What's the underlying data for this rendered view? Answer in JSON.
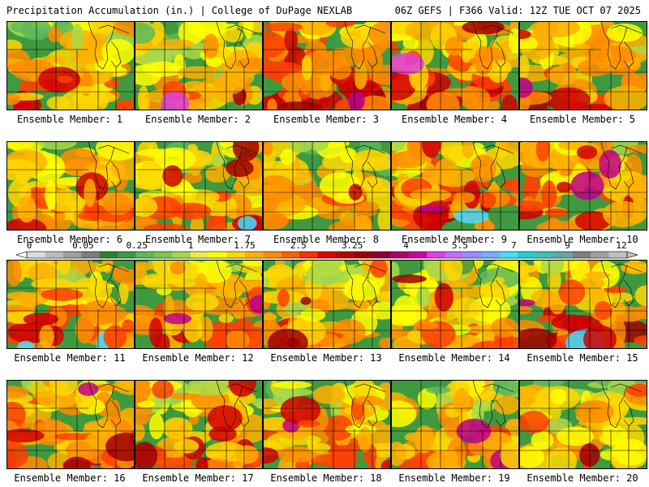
{
  "header": {
    "left": "Precipitation Accumulation (in.) | College of DuPage NEXLAB",
    "right": "06Z GEFS | F366 Valid: 12Z TUE OCT 07 2025"
  },
  "colorbar": {
    "tick_labels": [
      "0",
      "0.05",
      "0.25",
      "1",
      "1.75",
      "2.5",
      "3.25",
      "4",
      "5.5",
      "7",
      "9",
      "12"
    ],
    "colors": [
      "#dcdcdc",
      "#bdbdbd",
      "#9e9e9e",
      "#7d7d7d",
      "#2f7f2f",
      "#3f9a3f",
      "#5cb85c",
      "#7cc84a",
      "#a8d84a",
      "#e8f040",
      "#ffff00",
      "#ffd700",
      "#ffb000",
      "#ff8c00",
      "#ff6000",
      "#ff3000",
      "#e00000",
      "#c00000",
      "#a00000",
      "#8b0036",
      "#b0006c",
      "#d000a0",
      "#e040e0",
      "#c070ff",
      "#9090ff",
      "#70b0ff",
      "#40e0ff",
      "#20d0d0",
      "#40c0b0",
      "#60a8a0",
      "#808080",
      "#a0a0a0",
      "#c0c0c0"
    ]
  },
  "panels": [
    {
      "label": "Ensemble Member: 1"
    },
    {
      "label": "Ensemble Member: 2"
    },
    {
      "label": "Ensemble Member: 3"
    },
    {
      "label": "Ensemble Member: 4"
    },
    {
      "label": "Ensemble Member: 5"
    },
    {
      "label": "Ensemble Member: 6"
    },
    {
      "label": "Ensemble Member: 7"
    },
    {
      "label": "Ensemble Member: 8"
    },
    {
      "label": "Ensemble Member: 9"
    },
    {
      "label": "Ensemble Member: 10"
    },
    {
      "label": "Ensemble Member: 11"
    },
    {
      "label": "Ensemble Member: 12"
    },
    {
      "label": "Ensemble Member: 13"
    },
    {
      "label": "Ensemble Member: 14"
    },
    {
      "label": "Ensemble Member: 15"
    },
    {
      "label": "Ensemble Member: 16"
    },
    {
      "label": "Ensemble Member: 17"
    },
    {
      "label": "Ensemble Member: 18"
    },
    {
      "label": "Ensemble Member: 19"
    },
    {
      "label": "Ensemble Member: 20"
    }
  ]
}
